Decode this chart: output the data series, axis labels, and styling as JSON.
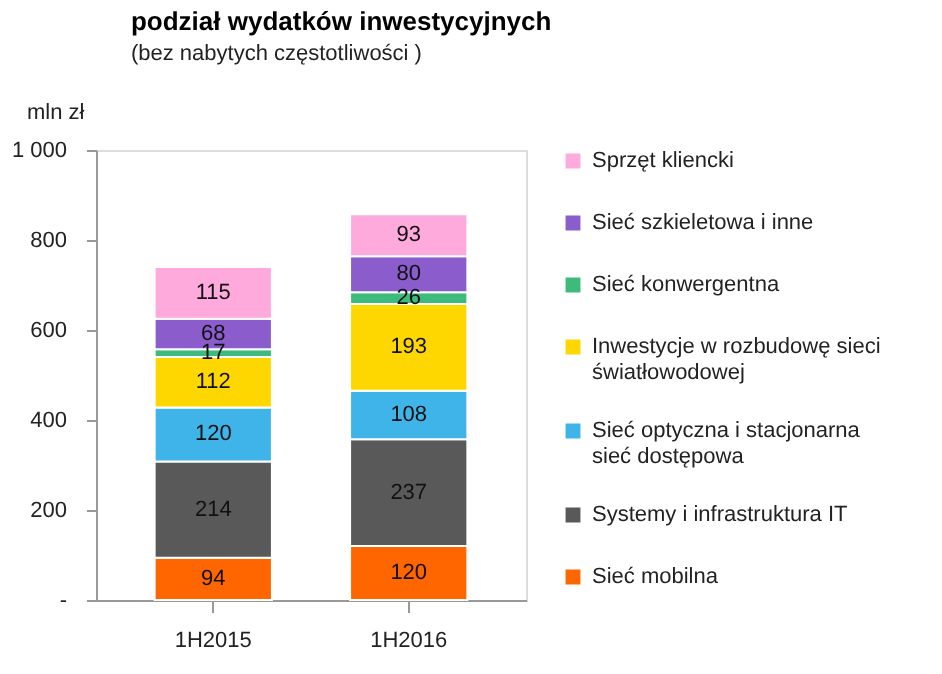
{
  "chart_data": {
    "type": "bar",
    "stacked": true,
    "title": "podział wydatków inwestycyjnych",
    "subtitle": "(bez nabytych częstotliwości )",
    "ylabel": "mln zł",
    "categories": [
      "1H2015",
      "1H2016"
    ],
    "series": [
      {
        "name": "Sieć mobilna",
        "color": "#ff6600",
        "values": [
          94,
          120
        ]
      },
      {
        "name": "Systemy i infrastruktura IT",
        "color": "#595959",
        "values": [
          214,
          237
        ]
      },
      {
        "name": "Sieć optyczna i stacjonarna sieć dostępowa",
        "color": "#3fb4e8",
        "values": [
          120,
          108
        ]
      },
      {
        "name": "Inwestycje w rozbudowę sieci światłowodowej",
        "color": "#ffd700",
        "values": [
          112,
          193
        ]
      },
      {
        "name": "Sieć konwergentna",
        "color": "#3dbb7c",
        "values": [
          17,
          26
        ]
      },
      {
        "name": "Sieć szkieletowa i inne",
        "color": "#8a5ccc",
        "values": [
          68,
          80
        ]
      },
      {
        "name": "Sprzęt kliencki",
        "color": "#ffaadd",
        "values": [
          115,
          93
        ]
      }
    ],
    "ylim": [
      0,
      1000
    ],
    "yticks": [
      {
        "value": 0,
        "label": "-"
      },
      200,
      400,
      600,
      800,
      {
        "value": 1000,
        "label": "1 000"
      }
    ],
    "data_labels": true,
    "grid": false,
    "legend": "right"
  }
}
